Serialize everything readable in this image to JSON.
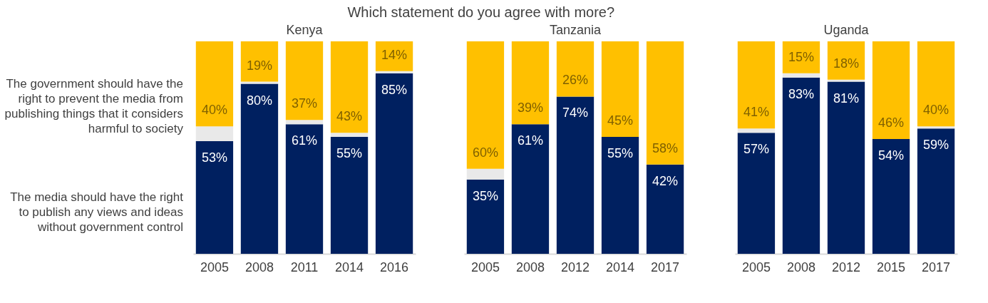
{
  "chart_data": [
    {
      "type": "bar",
      "stacked": true,
      "title": "Which statement do you agree with more?",
      "subtitle": "Kenya",
      "categories": [
        "2005",
        "2008",
        "2011",
        "2014",
        "2016"
      ],
      "series": [
        {
          "name": "The media should have the right\nto publish any views and ideas\nwithout government control",
          "color": "#002060",
          "values": [
            53,
            80,
            61,
            55,
            85
          ],
          "value_labels": [
            "53%",
            "80%",
            "61%",
            "55%",
            "85%"
          ]
        },
        {
          "color": "#e9e9e9",
          "values": [
            7,
            1,
            2,
            2,
            1
          ]
        },
        {
          "name": "The government should have the\nright to prevent the media from\npublishing things that it considers\nharmful to society",
          "color": "#ffc000",
          "values": [
            40,
            19,
            37,
            43,
            14
          ],
          "value_labels": [
            "40%",
            "19%",
            "37%",
            "43%",
            "14%"
          ]
        }
      ]
    },
    {
      "type": "bar",
      "stacked": true,
      "subtitle": "Tanzania",
      "categories": [
        "2005",
        "2008",
        "2012",
        "2014",
        "2017"
      ],
      "series": [
        {
          "color": "#002060",
          "values": [
            35,
            61,
            74,
            55,
            42
          ],
          "value_labels": [
            "35%",
            "61%",
            "74%",
            "55%",
            "42%"
          ]
        },
        {
          "color": "#e9e9e9",
          "values": [
            5,
            0,
            0,
            0,
            0
          ]
        },
        {
          "color": "#ffc000",
          "values": [
            60,
            39,
            26,
            45,
            58
          ],
          "value_labels": [
            "60%",
            "39%",
            "26%",
            "45%",
            "58%"
          ]
        }
      ]
    },
    {
      "type": "bar",
      "stacked": true,
      "subtitle": "Uganda",
      "categories": [
        "2005",
        "2008",
        "2012",
        "2015",
        "2017"
      ],
      "series": [
        {
          "color": "#002060",
          "values": [
            57,
            83,
            81,
            54,
            59
          ],
          "value_labels": [
            "57%",
            "83%",
            "81%",
            "54%",
            "59%"
          ]
        },
        {
          "color": "#e9e9e9",
          "values": [
            2,
            2,
            1,
            0,
            1
          ]
        },
        {
          "color": "#ffc000",
          "values": [
            41,
            15,
            18,
            46,
            40
          ],
          "value_labels": [
            "41%",
            "15%",
            "18%",
            "46%",
            "40%"
          ]
        }
      ]
    }
  ]
}
